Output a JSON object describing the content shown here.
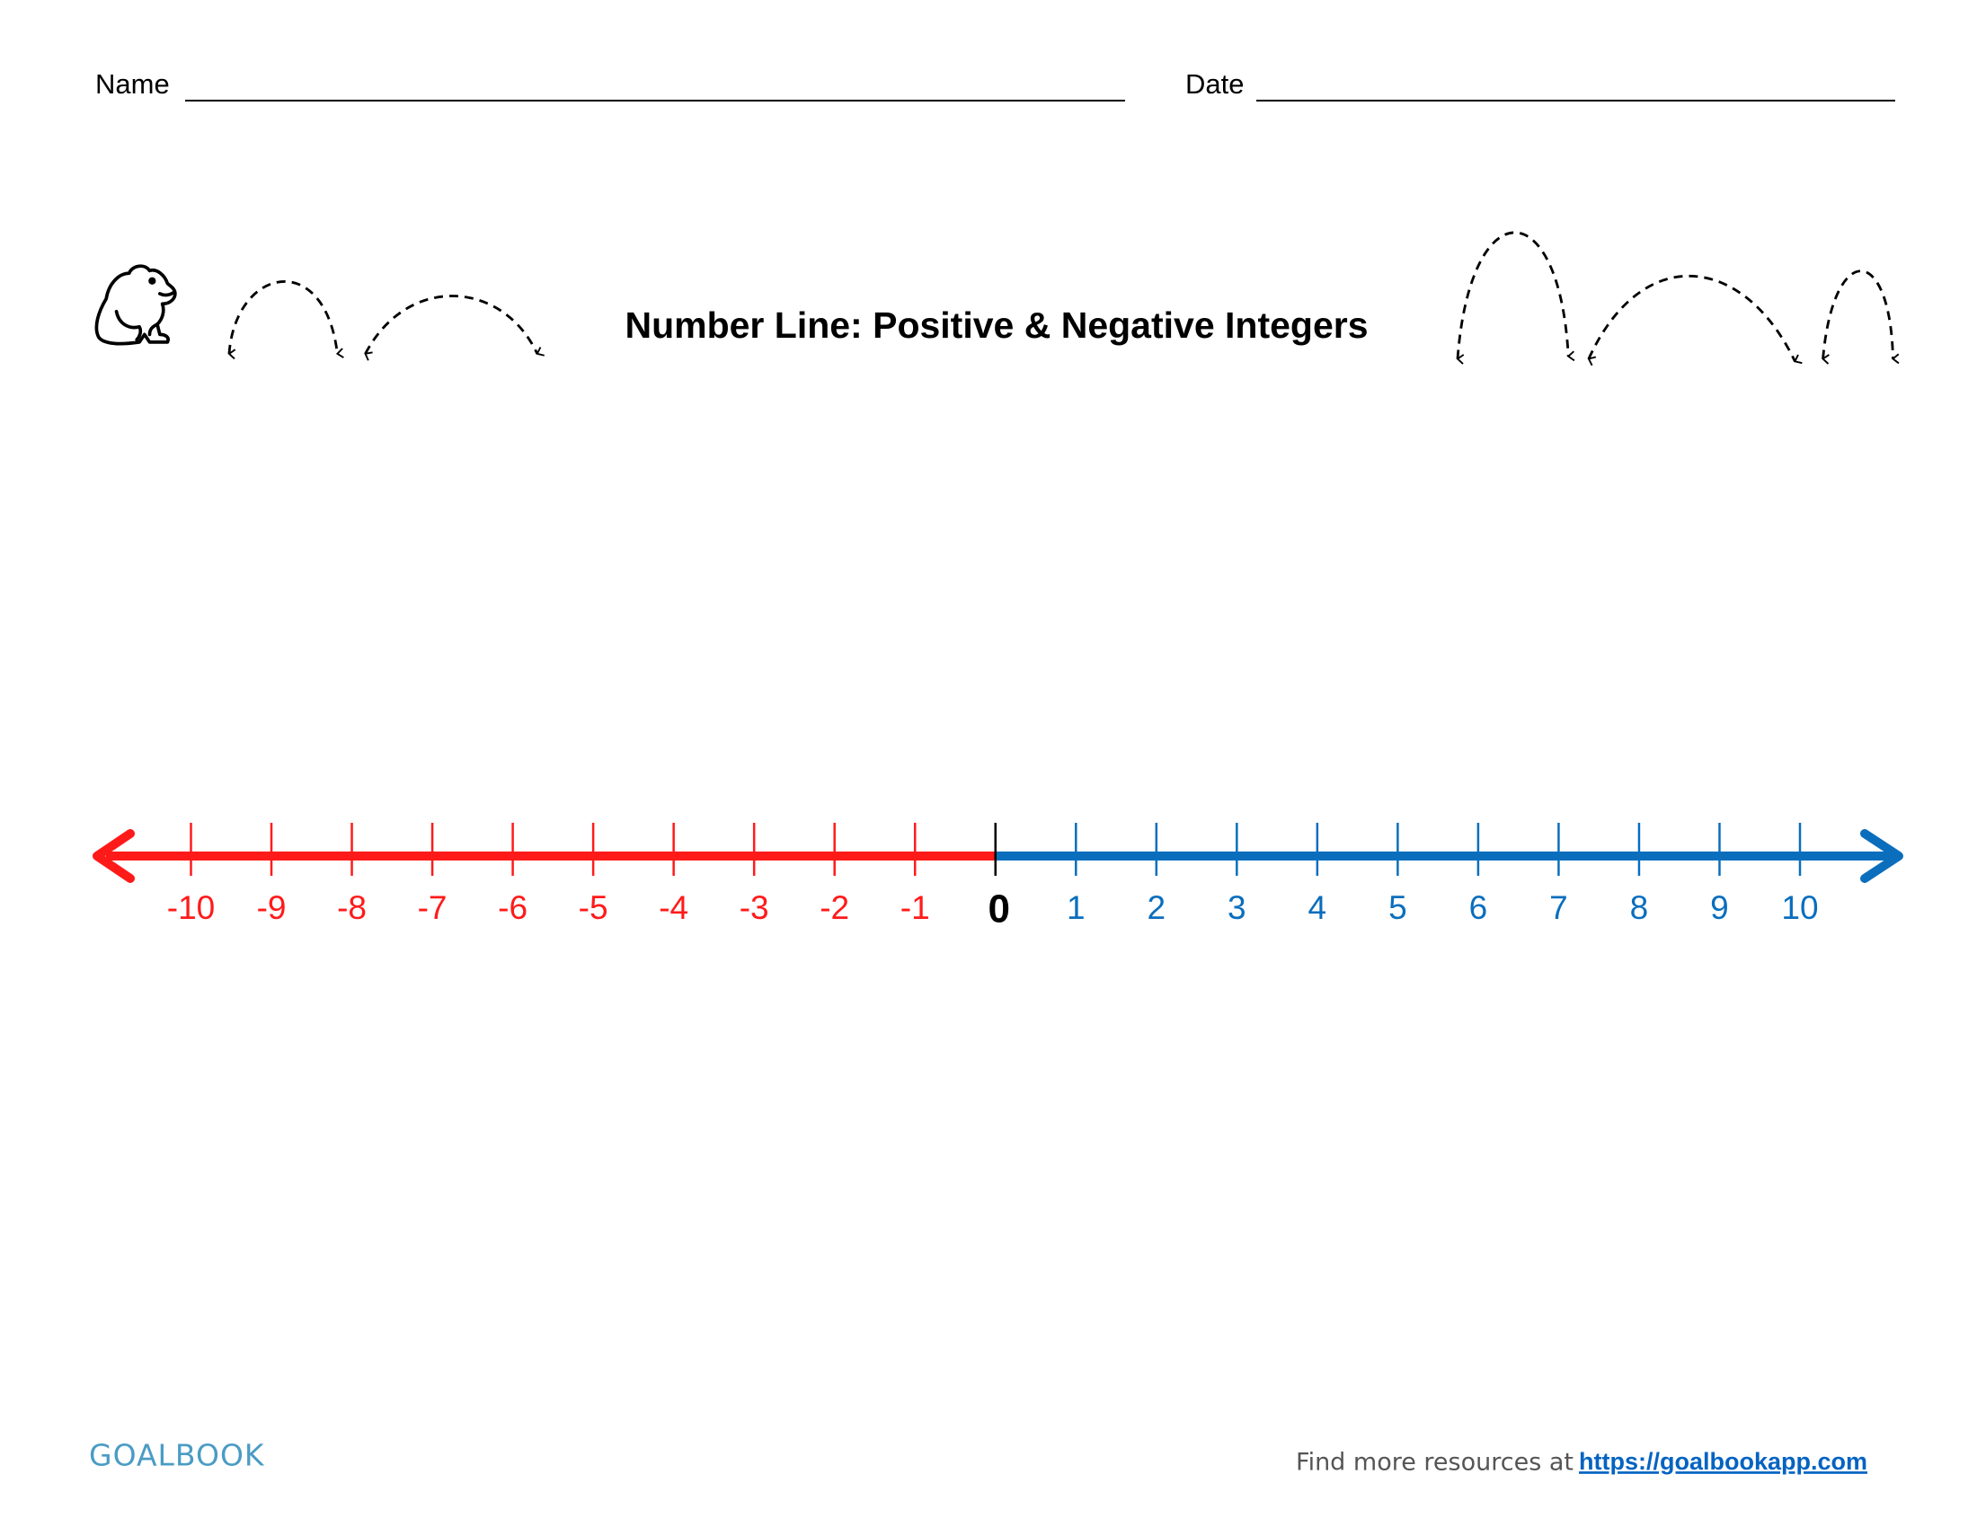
{
  "header": {
    "name_label": "Name",
    "date_label": "Date"
  },
  "title": "Number Line: Positive & Negative Integers",
  "number_line": {
    "ticks": [
      -10,
      -9,
      -8,
      -7,
      -6,
      -5,
      -4,
      -3,
      -2,
      -1,
      0,
      1,
      2,
      3,
      4,
      5,
      6,
      7,
      8,
      9,
      10
    ]
  },
  "footer": {
    "logo": "GOALBOOK",
    "text": "Find more resources at",
    "link": "https://goalbookapp.com"
  }
}
